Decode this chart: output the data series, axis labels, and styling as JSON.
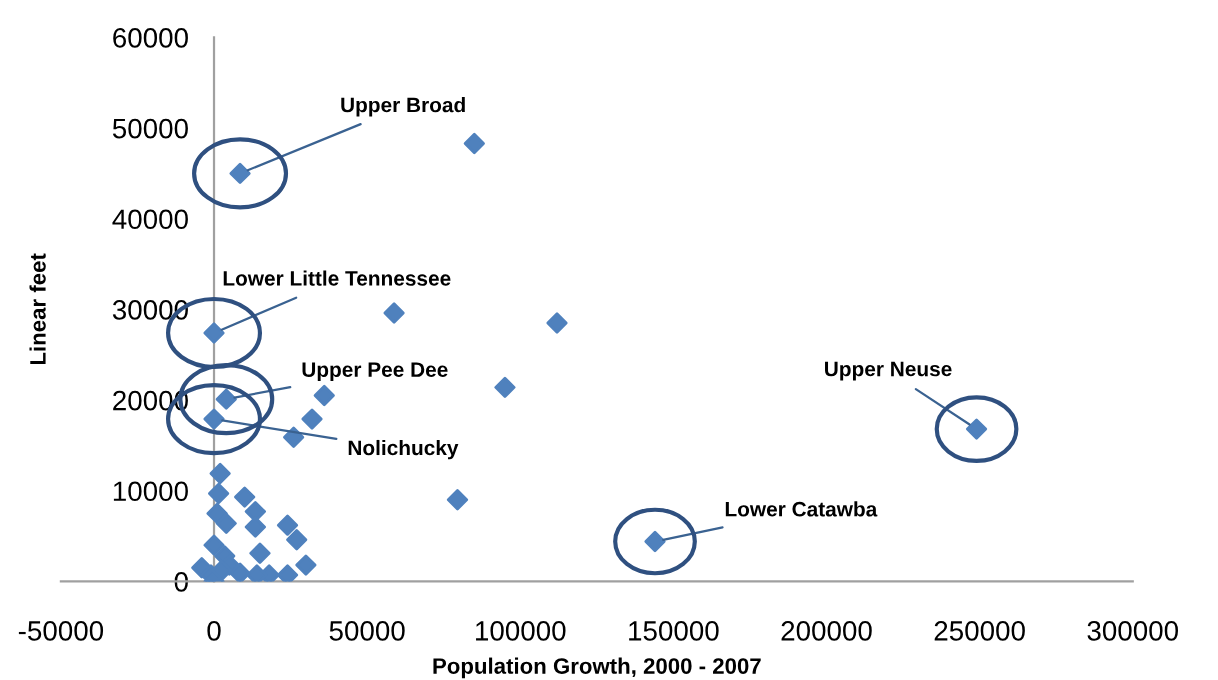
{
  "chart_data": {
    "type": "scatter",
    "xlabel": "Population Growth, 2000 - 2007",
    "ylabel": "Linear feet",
    "xlim": [
      -50000,
      300000
    ],
    "xticks": [
      -50000,
      0,
      50000,
      100000,
      150000,
      200000,
      250000,
      300000
    ],
    "ylim": [
      0,
      60000
    ],
    "yticks": [
      0,
      10000,
      20000,
      30000,
      40000,
      50000,
      60000
    ],
    "marker": "diamond",
    "grid": false,
    "legend": false,
    "series": [
      {
        "color": "#4f81bd",
        "x": [
          8500,
          85000,
          58800,
          0,
          4000,
          36000,
          95000,
          0,
          32000,
          26000,
          79500,
          2000,
          1500,
          10000,
          13500,
          1000,
          4000,
          13500,
          24000,
          27000,
          15000,
          30000,
          24000,
          18000,
          14000,
          8500,
          0,
          3500,
          -4000,
          -1000,
          0,
          5000,
          2500,
          112000,
          249000,
          144000
        ],
        "values": [
          45000,
          48300,
          29600,
          27400,
          20100,
          20500,
          21400,
          17900,
          17900,
          15900,
          9000,
          11900,
          9700,
          9300,
          7700,
          7500,
          6400,
          6000,
          6200,
          4600,
          3100,
          1800,
          700,
          700,
          700,
          900,
          4000,
          2800,
          1500,
          700,
          0,
          1800,
          1200,
          28500,
          16800,
          4400
        ]
      }
    ],
    "annotations": [
      {
        "text": "Upper Broad",
        "x": 8500,
        "y": 45000
      },
      {
        "text": "Lower Little Tennessee",
        "x": 0,
        "y": 27400
      },
      {
        "text": "Upper Pee Dee",
        "x": 4000,
        "y": 20100
      },
      {
        "text": "Nolichucky",
        "x": 0,
        "y": 17900
      },
      {
        "text": "Upper Neuse",
        "x": 249000,
        "y": 16800
      },
      {
        "text": "Lower Catawba",
        "x": 144000,
        "y": 4400
      }
    ]
  }
}
